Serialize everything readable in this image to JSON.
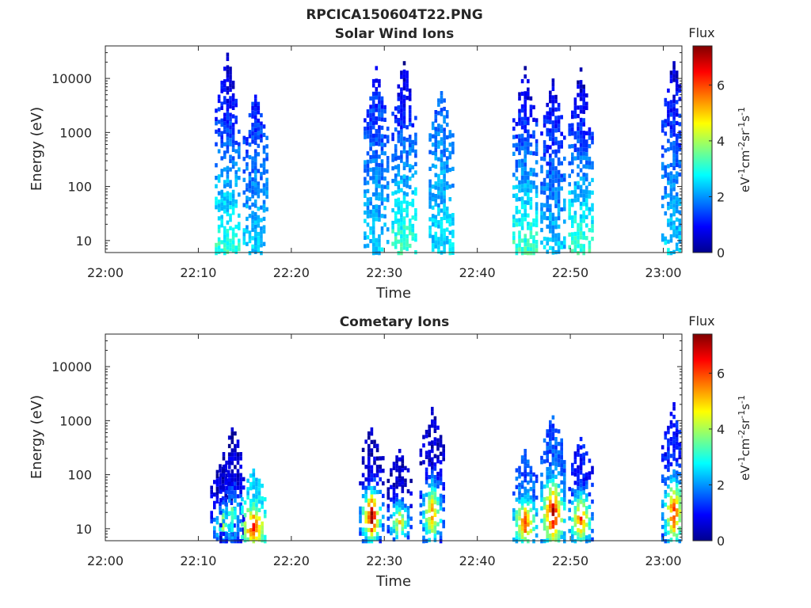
{
  "figure_title": "RPCICA150604T22.PNG",
  "chart_data": [
    {
      "type": "heatmap",
      "title": "Solar Wind Ions",
      "xlabel": "Time",
      "ylabel": "Energy (eV)",
      "y_scale": "log",
      "ylim": [
        6,
        40000
      ],
      "x_range": [
        "22:00",
        "23:02"
      ],
      "x_ticks": [
        "22:00",
        "22:10",
        "22:20",
        "22:30",
        "22:40",
        "22:50",
        "23:00"
      ],
      "y_ticks": [
        "10",
        "100",
        "1000",
        "10000"
      ],
      "colorbar": {
        "label": "eV-1cm-2sr-1s-1",
        "title": "Flux",
        "range": [
          0,
          7.4
        ],
        "ticks": [
          "0",
          "2",
          "4",
          "6"
        ]
      },
      "events": [
        {
          "time": "22:13",
          "e_min": 6,
          "e_max": 30000,
          "flux_min": 0.3,
          "flux_max": 3.2
        },
        {
          "time": "22:16",
          "e_min": 700,
          "e_max": 6000,
          "flux_min": 1.0,
          "flux_max": 2.5
        },
        {
          "time": "22:29",
          "e_min": 700,
          "e_max": 17000,
          "flux_min": 1.0,
          "flux_max": 2.5
        },
        {
          "time": "22:32",
          "e_min": 6,
          "e_max": 25000,
          "flux_min": 0.3,
          "flux_max": 3.3
        },
        {
          "time": "22:36",
          "e_min": 700,
          "e_max": 7000,
          "flux_min": 1.5,
          "flux_max": 2.6
        },
        {
          "time": "22:45",
          "e_min": 6,
          "e_max": 17000,
          "flux_min": 0.3,
          "flux_max": 3.3
        },
        {
          "time": "22:48",
          "e_min": 700,
          "e_max": 10000,
          "flux_min": 0.6,
          "flux_max": 2.5
        },
        {
          "time": "22:51",
          "e_min": 6,
          "e_max": 16000,
          "flux_min": 0.3,
          "flux_max": 3.3
        },
        {
          "time": "23:01",
          "e_min": 400,
          "e_max": 25000,
          "flux_min": 0.5,
          "flux_max": 2.6
        }
      ]
    },
    {
      "type": "heatmap",
      "title": "Cometary Ions",
      "xlabel": "Time",
      "ylabel": "Energy (eV)",
      "y_scale": "log",
      "ylim": [
        6,
        40000
      ],
      "x_range": [
        "22:00",
        "23:02"
      ],
      "x_ticks": [
        "22:00",
        "22:10",
        "22:20",
        "22:30",
        "22:40",
        "22:50",
        "23:00"
      ],
      "y_ticks": [
        "10",
        "100",
        "1000",
        "10000"
      ],
      "colorbar": {
        "label": "eV-1cm-2sr-1s-1",
        "title": "Flux",
        "range": [
          0,
          7.4
        ],
        "ticks": [
          "0",
          "2",
          "4",
          "6"
        ]
      },
      "events": [
        {
          "time": "22:12.5",
          "e_min": 6,
          "e_max": 200,
          "flux_min": 0.5,
          "flux_max": 4.2
        },
        {
          "time": "22:13.5",
          "e_min": 6,
          "e_max": 900,
          "flux_min": 0.5,
          "flux_max": 3.5
        },
        {
          "time": "22:15.8",
          "e_min": 6,
          "e_max": 130,
          "flux_min": 2.5,
          "flux_max": 6.5
        },
        {
          "time": "22:28.5",
          "e_min": 6,
          "e_max": 900,
          "flux_min": 0.5,
          "flux_max": 7.2
        },
        {
          "time": "22:31.5",
          "e_min": 6,
          "e_max": 300,
          "flux_min": 0.5,
          "flux_max": 4.8
        },
        {
          "time": "22:35",
          "e_min": 6,
          "e_max": 1800,
          "flux_min": 0.5,
          "flux_max": 5.6
        },
        {
          "time": "22:45",
          "e_min": 6,
          "e_max": 300,
          "flux_min": 1.5,
          "flux_max": 6.2
        },
        {
          "time": "22:48",
          "e_min": 6,
          "e_max": 1500,
          "flux_min": 1.5,
          "flux_max": 7.0
        },
        {
          "time": "22:51",
          "e_min": 6,
          "e_max": 500,
          "flux_min": 1.0,
          "flux_max": 6.0
        },
        {
          "time": "23:01",
          "e_min": 6,
          "e_max": 2200,
          "flux_min": 1.0,
          "flux_max": 6.2
        }
      ]
    }
  ]
}
